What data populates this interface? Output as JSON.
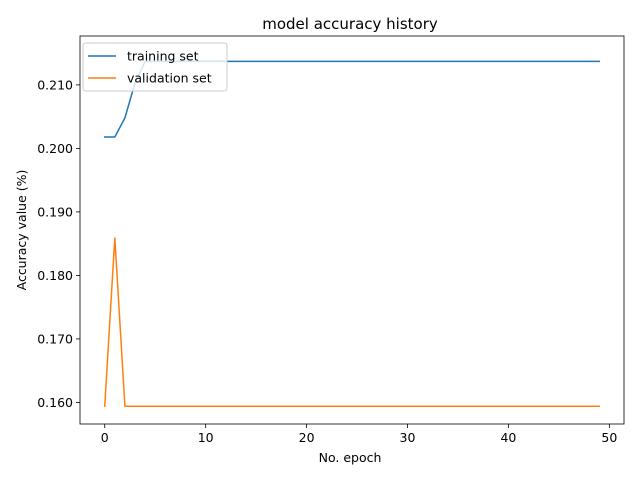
{
  "chart_data": {
    "type": "line",
    "title": "model accuracy history",
    "xlabel": "No. epoch",
    "ylabel": "Accuracy value (%)",
    "xlim": [
      -2.45,
      51.45
    ],
    "ylim": [
      0.1566,
      0.2177
    ],
    "xticks": [
      0,
      10,
      20,
      30,
      40,
      50
    ],
    "yticks": [
      0.16,
      0.17,
      0.18,
      0.19,
      0.2,
      0.21
    ],
    "ytick_labels": [
      "0.160",
      "0.170",
      "0.180",
      "0.190",
      "0.200",
      "0.210"
    ],
    "legend_position": "top-left",
    "grid": false,
    "series": [
      {
        "name": "training set",
        "color": "#1f77b4",
        "x": [
          0,
          1,
          2,
          3,
          4,
          5,
          6,
          7,
          8,
          9,
          10,
          11,
          12,
          13,
          14,
          15,
          16,
          17,
          18,
          19,
          20,
          21,
          22,
          23,
          24,
          25,
          26,
          27,
          28,
          29,
          30,
          31,
          32,
          33,
          34,
          35,
          36,
          37,
          38,
          39,
          40,
          41,
          42,
          43,
          44,
          45,
          46,
          47,
          48,
          49
        ],
        "values": [
          0.2018,
          0.2018,
          0.2048,
          0.2103,
          0.2137,
          0.2137,
          0.2137,
          0.2137,
          0.2137,
          0.2137,
          0.2137,
          0.2137,
          0.2137,
          0.2137,
          0.2137,
          0.2137,
          0.2137,
          0.2137,
          0.2137,
          0.2137,
          0.2137,
          0.2137,
          0.2137,
          0.2137,
          0.2137,
          0.2137,
          0.2137,
          0.2137,
          0.2137,
          0.2137,
          0.2137,
          0.2137,
          0.2137,
          0.2137,
          0.2137,
          0.2137,
          0.2137,
          0.2137,
          0.2137,
          0.2137,
          0.2137,
          0.2137,
          0.2137,
          0.2137,
          0.2137,
          0.2137,
          0.2137,
          0.2137,
          0.2137,
          0.2137
        ]
      },
      {
        "name": "validation set",
        "color": "#ff7f0e",
        "x": [
          0,
          1,
          2,
          3,
          4,
          5,
          6,
          7,
          8,
          9,
          10,
          11,
          12,
          13,
          14,
          15,
          16,
          17,
          18,
          19,
          20,
          21,
          22,
          23,
          24,
          25,
          26,
          27,
          28,
          29,
          30,
          31,
          32,
          33,
          34,
          35,
          36,
          37,
          38,
          39,
          40,
          41,
          42,
          43,
          44,
          45,
          46,
          47,
          48,
          49
        ],
        "values": [
          0.1594,
          0.1859,
          0.1594,
          0.1594,
          0.1594,
          0.1594,
          0.1594,
          0.1594,
          0.1594,
          0.1594,
          0.1594,
          0.1594,
          0.1594,
          0.1594,
          0.1594,
          0.1594,
          0.1594,
          0.1594,
          0.1594,
          0.1594,
          0.1594,
          0.1594,
          0.1594,
          0.1594,
          0.1594,
          0.1594,
          0.1594,
          0.1594,
          0.1594,
          0.1594,
          0.1594,
          0.1594,
          0.1594,
          0.1594,
          0.1594,
          0.1594,
          0.1594,
          0.1594,
          0.1594,
          0.1594,
          0.1594,
          0.1594,
          0.1594,
          0.1594,
          0.1594,
          0.1594,
          0.1594,
          0.1594,
          0.1594,
          0.1594
        ]
      }
    ]
  }
}
